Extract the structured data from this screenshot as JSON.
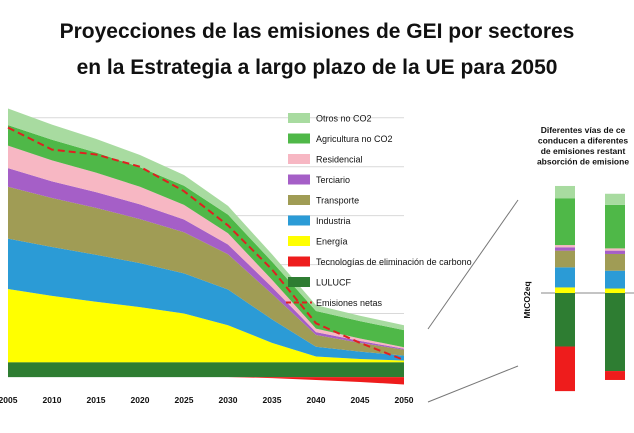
{
  "title_line1": "Proyecciones de las emisiones de GEI por sectores",
  "title_line2": "en la Estrategia a largo plazo de la UE para 2050",
  "colors": {
    "otros": "#a8dba0",
    "agricultura": "#4fb848",
    "residencial": "#f7b7c3",
    "terciario": "#a55fc7",
    "transporte": "#a09c55",
    "industria": "#2b9bd6",
    "energia": "#ffff00",
    "tecnologias": "#ee1c1c",
    "lulucf": "#2e7d32",
    "net": "#e02020"
  },
  "chart_data": {
    "type": "area",
    "x": [
      2005,
      2010,
      2015,
      2020,
      2025,
      2030,
      2035,
      2040,
      2045,
      2050
    ],
    "xlabel": "",
    "ylabel": "",
    "ylim": [
      -400,
      5200
    ],
    "grid": true,
    "legend": {
      "placement": "inside-right",
      "entries": [
        {
          "key": "otros",
          "label": "Otros no CO2"
        },
        {
          "key": "agricultura",
          "label": "Agricultura no CO2"
        },
        {
          "key": "residencial",
          "label": "Residencial"
        },
        {
          "key": "terciario",
          "label": "Terciario"
        },
        {
          "key": "transporte",
          "label": "Transporte"
        },
        {
          "key": "industria",
          "label": "Industria"
        },
        {
          "key": "energia",
          "label": "Energía"
        },
        {
          "key": "tecnologias",
          "label": "Tecnologías de eliminación de carbono"
        },
        {
          "key": "lulucf",
          "label": "LULUCF"
        },
        {
          "key": "net",
          "label": "Emisiones netas"
        }
      ]
    },
    "series_positive": [
      {
        "key": "energia",
        "values": [
          1500,
          1360,
          1240,
          1130,
          1000,
          760,
          400,
          120,
          70,
          40
        ]
      },
      {
        "key": "industria",
        "values": [
          1030,
          1000,
          960,
          900,
          820,
          730,
          480,
          200,
          150,
          100
        ]
      },
      {
        "key": "transporte",
        "values": [
          1060,
          1000,
          960,
          900,
          840,
          720,
          520,
          240,
          180,
          120
        ]
      },
      {
        "key": "terciario",
        "values": [
          380,
          340,
          320,
          300,
          260,
          200,
          140,
          60,
          40,
          20
        ]
      },
      {
        "key": "residencial",
        "values": [
          460,
          430,
          400,
          360,
          300,
          230,
          150,
          70,
          50,
          30
        ]
      },
      {
        "key": "agricultura",
        "values": [
          420,
          420,
          410,
          400,
          390,
          380,
          370,
          360,
          355,
          350
        ]
      },
      {
        "key": "otros",
        "values": [
          340,
          310,
          280,
          250,
          220,
          180,
          150,
          120,
          110,
          100
        ]
      }
    ],
    "series_negative": [
      {
        "key": "lulucf",
        "values": [
          -300,
          -300,
          -300,
          -300,
          -300,
          -300,
          -300,
          -300,
          -300,
          -300
        ]
      },
      {
        "key": "tecnologias",
        "values": [
          0,
          0,
          0,
          0,
          0,
          0,
          -20,
          -60,
          -100,
          -150
        ]
      }
    ],
    "net_emissions": {
      "key": "net",
      "values": [
        4800,
        4350,
        4250,
        4000,
        3500,
        2800,
        1900,
        800,
        400,
        50
      ]
    },
    "side_panel": {
      "title_lines": [
        "Diferentes vías de ce",
        "conducen a diferentes",
        "de emisiones restant",
        "absorción de emisione"
      ],
      "ylabel": "MtCO2eq",
      "bars": [
        {
          "positive": [
            {
              "key": "energia",
              "value": 50
            },
            {
              "key": "industria",
              "value": 180
            },
            {
              "key": "transporte",
              "value": 150
            },
            {
              "key": "terciario",
              "value": 30
            },
            {
              "key": "residencial",
              "value": 20
            },
            {
              "key": "agricultura",
              "value": 420
            },
            {
              "key": "otros",
              "value": 110
            }
          ],
          "negative": [
            {
              "key": "lulucf",
              "value": -480
            },
            {
              "key": "tecnologias",
              "value": -400
            }
          ]
        },
        {
          "positive": [
            {
              "key": "energia",
              "value": 40
            },
            {
              "key": "industria",
              "value": 160
            },
            {
              "key": "transporte",
              "value": 150
            },
            {
              "key": "terciario",
              "value": 30
            },
            {
              "key": "residencial",
              "value": 20
            },
            {
              "key": "agricultura",
              "value": 390
            },
            {
              "key": "otros",
              "value": 100
            }
          ],
          "negative": [
            {
              "key": "lulucf",
              "value": -700
            },
            {
              "key": "tecnologias",
              "value": -80
            }
          ]
        }
      ]
    }
  }
}
